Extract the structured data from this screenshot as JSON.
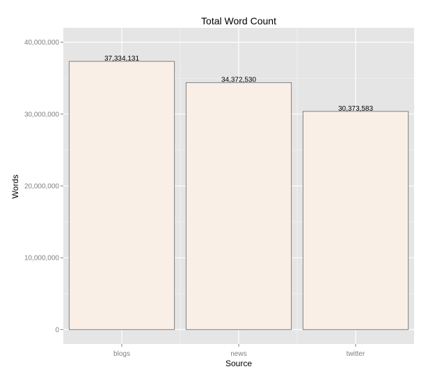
{
  "chart_data": {
    "type": "bar",
    "title": "Total Word Count",
    "xlabel": "Source",
    "ylabel": "Words",
    "categories": [
      "blogs",
      "news",
      "twitter"
    ],
    "values": [
      37334131,
      34372530,
      30373583
    ],
    "data_labels": [
      "37,334,131",
      "34,372,530",
      "30,373,583"
    ],
    "ylim": [
      -2000000,
      42000000
    ],
    "y_ticks": [
      0,
      10000000,
      20000000,
      30000000,
      40000000
    ],
    "y_tick_labels": [
      "0",
      "10,000,000",
      "20,000,000",
      "30,000,000",
      "40,000,000"
    ],
    "grid": true,
    "legend": "none",
    "colors": {
      "panel_background": "#e5e5e5",
      "grid_major": "#ffffff",
      "grid_minor": "#f2f2f2",
      "bar_fill": "#faefe6",
      "bar_outline": "#7f7f7f",
      "tick_text": "#7f7f7f"
    }
  }
}
